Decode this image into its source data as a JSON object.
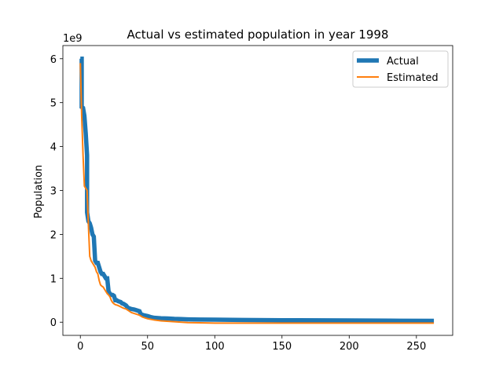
{
  "chart_data": {
    "type": "line",
    "title": "Actual vs estimated population in year 1998",
    "xlabel": "",
    "ylabel": "Population",
    "offset_text": "1e9",
    "y_scale": 1000000000,
    "xlim": [
      -13,
      277
    ],
    "ylim": [
      -0.3,
      6.3
    ],
    "x_ticks": [
      0,
      50,
      100,
      150,
      200,
      250
    ],
    "y_ticks": [
      0,
      1,
      2,
      3,
      4,
      5,
      6
    ],
    "grid": false,
    "legend_position": "top-right",
    "series": [
      {
        "name": "Actual",
        "color": "#1f77b4",
        "points": [
          [
            0,
            6.0
          ],
          [
            1,
            6.0
          ],
          [
            1,
            4.9
          ],
          [
            2,
            4.88
          ],
          [
            3,
            4.7
          ],
          [
            4,
            4.3
          ],
          [
            5,
            3.8
          ],
          [
            5,
            2.5
          ],
          [
            6,
            2.3
          ],
          [
            7,
            2.25
          ],
          [
            8,
            2.15
          ],
          [
            9,
            2.0
          ],
          [
            10,
            1.95
          ],
          [
            11,
            1.4
          ],
          [
            12,
            1.35
          ],
          [
            13,
            1.35
          ],
          [
            14,
            1.25
          ],
          [
            15,
            1.15
          ],
          [
            16,
            1.1
          ],
          [
            17,
            1.1
          ],
          [
            18,
            1.05
          ],
          [
            19,
            1.0
          ],
          [
            20,
            1.0
          ],
          [
            21,
            0.7
          ],
          [
            22,
            0.65
          ],
          [
            23,
            0.62
          ],
          [
            24,
            0.62
          ],
          [
            25,
            0.6
          ],
          [
            26,
            0.5
          ],
          [
            27,
            0.5
          ],
          [
            28,
            0.48
          ],
          [
            29,
            0.47
          ],
          [
            30,
            0.46
          ],
          [
            31,
            0.43
          ],
          [
            32,
            0.42
          ],
          [
            33,
            0.4
          ],
          [
            34,
            0.38
          ],
          [
            35,
            0.34
          ],
          [
            36,
            0.32
          ],
          [
            37,
            0.31
          ],
          [
            38,
            0.3
          ],
          [
            40,
            0.29
          ],
          [
            42,
            0.27
          ],
          [
            44,
            0.25
          ],
          [
            45,
            0.18
          ],
          [
            47,
            0.16
          ],
          [
            50,
            0.14
          ],
          [
            52,
            0.12
          ],
          [
            55,
            0.1
          ],
          [
            60,
            0.09
          ],
          [
            65,
            0.085
          ],
          [
            70,
            0.075
          ],
          [
            75,
            0.07
          ],
          [
            80,
            0.065
          ],
          [
            90,
            0.06
          ],
          [
            100,
            0.058
          ],
          [
            120,
            0.05
          ],
          [
            150,
            0.045
          ],
          [
            200,
            0.04
          ],
          [
            230,
            0.035
          ],
          [
            263,
            0.03
          ]
        ]
      },
      {
        "name": "Estimated",
        "color": "#ff7f0e",
        "points": [
          [
            0,
            5.9
          ],
          [
            1,
            4.7
          ],
          [
            2,
            3.8
          ],
          [
            3,
            3.1
          ],
          [
            4,
            3.05
          ],
          [
            5,
            3.0
          ],
          [
            6,
            2.2
          ],
          [
            7,
            1.5
          ],
          [
            8,
            1.4
          ],
          [
            9,
            1.35
          ],
          [
            10,
            1.3
          ],
          [
            11,
            1.25
          ],
          [
            12,
            1.15
          ],
          [
            13,
            1.1
          ],
          [
            14,
            0.95
          ],
          [
            15,
            0.85
          ],
          [
            16,
            0.82
          ],
          [
            17,
            0.8
          ],
          [
            18,
            0.75
          ],
          [
            19,
            0.7
          ],
          [
            20,
            0.65
          ],
          [
            21,
            0.62
          ],
          [
            22,
            0.58
          ],
          [
            23,
            0.5
          ],
          [
            24,
            0.45
          ],
          [
            25,
            0.42
          ],
          [
            26,
            0.4
          ],
          [
            28,
            0.38
          ],
          [
            30,
            0.35
          ],
          [
            32,
            0.32
          ],
          [
            34,
            0.3
          ],
          [
            36,
            0.26
          ],
          [
            38,
            0.22
          ],
          [
            40,
            0.2
          ],
          [
            42,
            0.18
          ],
          [
            44,
            0.16
          ],
          [
            46,
            0.12
          ],
          [
            48,
            0.1
          ],
          [
            50,
            0.08
          ],
          [
            55,
            0.05
          ],
          [
            60,
            0.03
          ],
          [
            70,
            0.01
          ],
          [
            80,
            -0.01
          ],
          [
            100,
            -0.02
          ],
          [
            150,
            -0.02
          ],
          [
            200,
            -0.02
          ],
          [
            263,
            -0.02
          ]
        ]
      }
    ]
  }
}
